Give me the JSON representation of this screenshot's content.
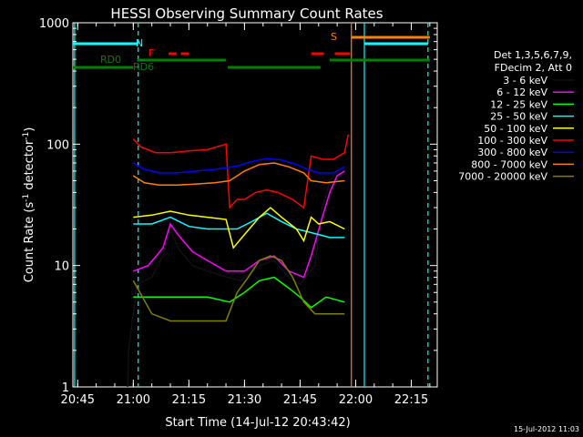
{
  "chart_data": {
    "type": "line",
    "title": "HESSI Observing Summary Count Rates",
    "xlabel": "Start Time (14-Jul-12 20:43:42)",
    "ylabel_prefix": "Count Rate (s",
    "ylabel_sup1": "-1",
    "ylabel_middle": " detector",
    "ylabel_sup2": "-1",
    "ylabel_suffix": ")",
    "y_scale": "log",
    "ylim": [
      1,
      1000
    ],
    "xlim": [
      "20:43:42",
      "22:22:00"
    ],
    "x_ticks": [
      "20:45",
      "21:00",
      "21:15",
      "21:30",
      "21:45",
      "22:00",
      "22:15"
    ],
    "y_ticks": [
      "1",
      "10",
      "100",
      "1000"
    ],
    "footer_date": "15-Jul-2012 11:03",
    "legend_header": [
      "Det 1,3,5,6,7,9,",
      "FDecim 2, Att 0"
    ],
    "legend_position": "right",
    "series": [
      {
        "name": "3 - 6 keV",
        "color": "#000000",
        "points": [
          [
            "20:58:30",
            1
          ],
          [
            "20:58:45",
            2
          ],
          [
            "21:01:00",
            7
          ],
          [
            "21:05:00",
            8
          ],
          [
            "21:08:00",
            12
          ],
          [
            "21:10:00",
            20
          ],
          [
            "21:12:00",
            14
          ],
          [
            "21:16:00",
            10
          ],
          [
            "21:20:00",
            9
          ],
          [
            "21:25:30",
            8
          ],
          [
            "21:29:00",
            7.5
          ],
          [
            "21:34:00",
            10
          ],
          [
            "21:38:00",
            11
          ],
          [
            "21:42:00",
            8
          ],
          [
            "21:45:00",
            7
          ],
          [
            "21:49:00",
            10
          ],
          [
            "21:51:00",
            30
          ],
          [
            "21:53:00",
            50
          ],
          [
            "21:55:00",
            60
          ],
          [
            "21:57:00",
            65
          ]
        ]
      },
      {
        "name": "6 - 12 keV",
        "color": "#ff00ff",
        "points": [
          [
            "21:00:00",
            9
          ],
          [
            "21:04:00",
            10
          ],
          [
            "21:08:00",
            14
          ],
          [
            "21:10:00",
            22
          ],
          [
            "21:12:00",
            18
          ],
          [
            "21:16:00",
            13
          ],
          [
            "21:20:00",
            11
          ],
          [
            "21:25:00",
            9
          ],
          [
            "21:30:00",
            9
          ],
          [
            "21:34:00",
            11
          ],
          [
            "21:38:00",
            12
          ],
          [
            "21:42:00",
            9
          ],
          [
            "21:46:00",
            8
          ],
          [
            "21:48:00",
            12
          ],
          [
            "21:51:00",
            25
          ],
          [
            "21:53:00",
            40
          ],
          [
            "21:55:00",
            55
          ],
          [
            "21:57:00",
            60
          ]
        ]
      },
      {
        "name": "12 - 25 keV",
        "color": "#00ff00",
        "points": [
          [
            "21:00:00",
            5.5
          ],
          [
            "21:10:00",
            5.5
          ],
          [
            "21:20:00",
            5.5
          ],
          [
            "21:26:00",
            5
          ],
          [
            "21:30:00",
            6
          ],
          [
            "21:34:00",
            7.5
          ],
          [
            "21:38:00",
            8
          ],
          [
            "21:42:00",
            6.5
          ],
          [
            "21:45:00",
            5.5
          ],
          [
            "21:48:00",
            4.5
          ],
          [
            "21:52:00",
            5.5
          ],
          [
            "21:57:00",
            5
          ]
        ]
      },
      {
        "name": "25 - 50 keV",
        "color": "#00ffff",
        "points": [
          [
            "21:00:00",
            22
          ],
          [
            "21:05:00",
            22
          ],
          [
            "21:10:00",
            25
          ],
          [
            "21:15:00",
            21
          ],
          [
            "21:20:00",
            20
          ],
          [
            "21:25:00",
            20
          ],
          [
            "21:28:00",
            20
          ],
          [
            "21:32:00",
            23
          ],
          [
            "21:36:00",
            27
          ],
          [
            "21:40:00",
            23
          ],
          [
            "21:44:00",
            20
          ],
          [
            "21:47:00",
            19
          ],
          [
            "21:50:00",
            18
          ],
          [
            "21:53:00",
            17
          ],
          [
            "21:57:00",
            17
          ]
        ]
      },
      {
        "name": "50 - 100 keV",
        "color": "#ffff00",
        "points": [
          [
            "21:00:00",
            25
          ],
          [
            "21:05:00",
            26
          ],
          [
            "21:10:00",
            28
          ],
          [
            "21:15:00",
            26
          ],
          [
            "21:20:00",
            25
          ],
          [
            "21:25:00",
            24
          ],
          [
            "21:27:00",
            14
          ],
          [
            "21:30:00",
            18
          ],
          [
            "21:34:00",
            25
          ],
          [
            "21:37:00",
            30
          ],
          [
            "21:40:00",
            25
          ],
          [
            "21:44:00",
            20
          ],
          [
            "21:46:00",
            16
          ],
          [
            "21:48:00",
            25
          ],
          [
            "21:50:00",
            22
          ],
          [
            "21:53:00",
            23
          ],
          [
            "21:57:00",
            20
          ]
        ]
      },
      {
        "name": "100 - 300 keV",
        "color": "#ff0000",
        "points": [
          [
            "21:00:00",
            110
          ],
          [
            "21:02:00",
            95
          ],
          [
            "21:06:00",
            85
          ],
          [
            "21:10:00",
            85
          ],
          [
            "21:15:00",
            88
          ],
          [
            "21:20:00",
            90
          ],
          [
            "21:25:00",
            100
          ],
          [
            "21:26:00",
            30
          ],
          [
            "21:28:00",
            35
          ],
          [
            "21:30:00",
            35
          ],
          [
            "21:33:00",
            40
          ],
          [
            "21:36:00",
            42
          ],
          [
            "21:39:00",
            40
          ],
          [
            "21:43:00",
            35
          ],
          [
            "21:46:00",
            30
          ],
          [
            "21:48:00",
            80
          ],
          [
            "21:51:00",
            75
          ],
          [
            "21:54:00",
            75
          ],
          [
            "21:57:00",
            85
          ],
          [
            "21:58:00",
            120
          ]
        ]
      },
      {
        "name": "300 - 800 keV",
        "color": "#0000ff",
        "points": [
          [
            "21:00:00",
            70
          ],
          [
            "21:03:00",
            62
          ],
          [
            "21:07:00",
            58
          ],
          [
            "21:12:00",
            58
          ],
          [
            "21:17:00",
            60
          ],
          [
            "21:22:00",
            62
          ],
          [
            "21:25:00",
            64
          ],
          [
            "21:28:00",
            66
          ],
          [
            "21:32:00",
            72
          ],
          [
            "21:36:00",
            76
          ],
          [
            "21:40:00",
            74
          ],
          [
            "21:44:00",
            68
          ],
          [
            "21:47:00",
            62
          ],
          [
            "21:50:00",
            58
          ],
          [
            "21:54:00",
            58
          ],
          [
            "21:57:00",
            65
          ]
        ]
      },
      {
        "name": "800 - 7000 keV",
        "color": "#ff8000",
        "points": [
          [
            "21:00:00",
            55
          ],
          [
            "21:03:00",
            48
          ],
          [
            "21:07:00",
            46
          ],
          [
            "21:12:00",
            46
          ],
          [
            "21:17:00",
            47
          ],
          [
            "21:22:00",
            48
          ],
          [
            "21:26:00",
            50
          ],
          [
            "21:30:00",
            60
          ],
          [
            "21:34:00",
            68
          ],
          [
            "21:38:00",
            70
          ],
          [
            "21:42:00",
            65
          ],
          [
            "21:46:00",
            58
          ],
          [
            "21:48:00",
            50
          ],
          [
            "21:52:00",
            48
          ],
          [
            "21:57:00",
            50
          ]
        ]
      },
      {
        "name": "7000 - 20000 keV",
        "color": "#808000",
        "points": [
          [
            "21:00:00",
            7.5
          ],
          [
            "21:05:00",
            4
          ],
          [
            "21:10:00",
            3.5
          ],
          [
            "21:15:00",
            3.5
          ],
          [
            "21:20:00",
            3.5
          ],
          [
            "21:25:00",
            3.5
          ],
          [
            "21:28:00",
            6
          ],
          [
            "21:31:00",
            8
          ],
          [
            "21:34:00",
            11
          ],
          [
            "21:37:00",
            12
          ],
          [
            "21:40:00",
            11
          ],
          [
            "21:43:00",
            8
          ],
          [
            "21:46:00",
            5
          ],
          [
            "21:49:00",
            4
          ],
          [
            "21:53:00",
            4
          ],
          [
            "21:57:00",
            4
          ]
        ]
      }
    ],
    "vertical_lines": [
      {
        "time": "20:44:10",
        "color": "#00ffff",
        "style": "solid"
      },
      {
        "time": "21:01:20",
        "color": "#00ffff",
        "style": "dashed"
      },
      {
        "time": "21:58:50",
        "color": "#ff8000",
        "style": "solid"
      },
      {
        "time": "22:02:20",
        "color": "#00ffff",
        "style": "solid"
      },
      {
        "time": "22:19:30",
        "color": "#00ffff",
        "style": "dashed"
      }
    ],
    "flag_bars": [
      {
        "label": "N",
        "color": "#00ffff",
        "segments": [
          [
            "20:43:42",
            "21:01:20"
          ],
          [
            "22:02:20",
            "22:19:30"
          ]
        ]
      },
      {
        "label": "F",
        "color": "#ff0000",
        "segments": [
          [
            "21:09:30",
            "21:11:40"
          ],
          [
            "21:12:50",
            "21:15:00"
          ],
          [
            "21:48:00",
            "21:51:20"
          ],
          [
            "21:54:20",
            "21:58:30"
          ]
        ]
      },
      {
        "label": "S",
        "color": "#ff8000",
        "segments": [
          [
            "21:58:50",
            "22:20:00"
          ]
        ]
      },
      {
        "label": "RD0",
        "color": "#008000",
        "segments": [
          [
            "21:01:00",
            "21:25:00"
          ],
          [
            "21:53:00",
            "22:20:00"
          ]
        ]
      },
      {
        "label": "RD6",
        "color": "#008000",
        "segments": [
          [
            "20:43:42",
            "21:00:00"
          ],
          [
            "21:25:30",
            "21:50:30"
          ]
        ]
      }
    ]
  }
}
